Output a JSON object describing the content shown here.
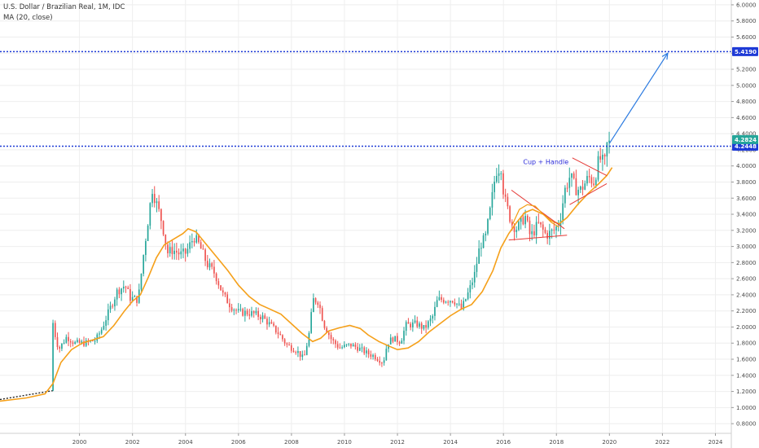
{
  "legend": {
    "title": "U.S. Dollar / Brazilian Real, 1M, IDC",
    "indicator": "MA (20, close)"
  },
  "chart_data": {
    "type": "candlestick",
    "title": "U.S. Dollar / Brazilian Real, 1M, IDC",
    "xlim": [
      1997.0,
      2024.6
    ],
    "ylim": [
      0.68,
      6.06
    ],
    "y_ticks": [
      0.8,
      1.0,
      1.2,
      1.4,
      1.6,
      1.8,
      2.0,
      2.2,
      2.4,
      2.6,
      2.8,
      3.0,
      3.2,
      3.4,
      3.6,
      3.8,
      4.0,
      4.2,
      4.4,
      4.6,
      4.8,
      5.0,
      5.2,
      5.4,
      5.6,
      5.8,
      6.0
    ],
    "y_tick_labels": [
      "0.8000",
      "1.0000",
      "1.2000",
      "1.4000",
      "1.6000",
      "1.8000",
      "2.0000",
      "2.2000",
      "2.4000",
      "2.6000",
      "2.8000",
      "3.0000",
      "3.2000",
      "3.4000",
      "3.6000",
      "3.8000",
      "4.0000",
      "4.2000",
      "4.4000",
      "4.6000",
      "4.8000",
      "5.0000",
      "5.2000",
      "5.4000",
      "5.6000",
      "5.8000",
      "6.0000"
    ],
    "x_ticks": [
      2000,
      2002,
      2004,
      2006,
      2008,
      2010,
      2012,
      2014,
      2016,
      2018,
      2020,
      2022,
      2024
    ],
    "x_tick_labels": [
      "2000",
      "2002",
      "2004",
      "2006",
      "2008",
      "2010",
      "2012",
      "2014",
      "2016",
      "2018",
      "2020",
      "2022",
      "2024"
    ],
    "grid": true,
    "close_path": [
      [
        1999.0,
        1.21
      ],
      [
        1999.05,
        2.05
      ],
      [
        1999.3,
        1.72
      ],
      [
        1999.6,
        1.88
      ],
      [
        1999.9,
        1.8
      ],
      [
        2000.3,
        1.8
      ],
      [
        2000.7,
        1.84
      ],
      [
        2000.9,
        1.96
      ],
      [
        2001.2,
        2.2
      ],
      [
        2001.5,
        2.44
      ],
      [
        2001.8,
        2.52
      ],
      [
        2002.0,
        2.36
      ],
      [
        2002.3,
        2.34
      ],
      [
        2002.5,
        2.9
      ],
      [
        2002.7,
        3.4
      ],
      [
        2002.83,
        3.72
      ],
      [
        2003.0,
        3.52
      ],
      [
        2003.2,
        3.3
      ],
      [
        2003.4,
        2.92
      ],
      [
        2003.6,
        2.96
      ],
      [
        2003.9,
        2.9
      ],
      [
        2004.1,
        2.92
      ],
      [
        2004.4,
        3.12
      ],
      [
        2004.6,
        3.02
      ],
      [
        2004.9,
        2.78
      ],
      [
        2005.2,
        2.66
      ],
      [
        2005.5,
        2.4
      ],
      [
        2005.8,
        2.26
      ],
      [
        2006.1,
        2.18
      ],
      [
        2006.4,
        2.18
      ],
      [
        2006.7,
        2.16
      ],
      [
        2007.0,
        2.12
      ],
      [
        2007.3,
        2.02
      ],
      [
        2007.6,
        1.92
      ],
      [
        2007.9,
        1.78
      ],
      [
        2008.3,
        1.7
      ],
      [
        2008.55,
        1.6
      ],
      [
        2008.75,
        1.92
      ],
      [
        2008.9,
        2.34
      ],
      [
        2009.1,
        2.32
      ],
      [
        2009.3,
        2.04
      ],
      [
        2009.6,
        1.84
      ],
      [
        2009.9,
        1.74
      ],
      [
        2010.3,
        1.78
      ],
      [
        2010.6,
        1.74
      ],
      [
        2010.9,
        1.68
      ],
      [
        2011.2,
        1.64
      ],
      [
        2011.55,
        1.56
      ],
      [
        2011.7,
        1.8
      ],
      [
        2011.9,
        1.86
      ],
      [
        2012.2,
        1.82
      ],
      [
        2012.4,
        2.02
      ],
      [
        2012.8,
        2.04
      ],
      [
        2013.1,
        1.98
      ],
      [
        2013.4,
        2.12
      ],
      [
        2013.6,
        2.34
      ],
      [
        2013.9,
        2.34
      ],
      [
        2014.2,
        2.34
      ],
      [
        2014.5,
        2.22
      ],
      [
        2014.8,
        2.46
      ],
      [
        2015.0,
        2.66
      ],
      [
        2015.2,
        3.02
      ],
      [
        2015.4,
        3.1
      ],
      [
        2015.6,
        3.48
      ],
      [
        2015.8,
        3.94
      ],
      [
        2016.0,
        4.0
      ],
      [
        2016.1,
        3.62
      ],
      [
        2016.4,
        3.28
      ],
      [
        2016.6,
        3.22
      ],
      [
        2016.9,
        3.38
      ],
      [
        2017.1,
        3.12
      ],
      [
        2017.4,
        3.28
      ],
      [
        2017.7,
        3.14
      ],
      [
        2018.0,
        3.2
      ],
      [
        2018.2,
        3.3
      ],
      [
        2018.4,
        3.7
      ],
      [
        2018.6,
        3.88
      ],
      [
        2018.8,
        3.72
      ],
      [
        2019.0,
        3.7
      ],
      [
        2019.3,
        3.86
      ],
      [
        2019.5,
        3.8
      ],
      [
        2019.7,
        4.1
      ],
      [
        2019.9,
        4.02
      ],
      [
        2020.0,
        4.28
      ]
    ],
    "candles": {
      "start": 1999.0,
      "step": 0.0833,
      "count": 253,
      "note_source": "monthly bars; close follows close_path"
    },
    "ma_path": [
      [
        1997.0,
        1.08
      ],
      [
        1998.0,
        1.12
      ],
      [
        1998.7,
        1.17
      ],
      [
        1999.0,
        1.3
      ],
      [
        1999.3,
        1.56
      ],
      [
        1999.7,
        1.72
      ],
      [
        2000.1,
        1.8
      ],
      [
        2000.5,
        1.84
      ],
      [
        2000.9,
        1.88
      ],
      [
        2001.3,
        2.02
      ],
      [
        2001.7,
        2.2
      ],
      [
        2002.0,
        2.32
      ],
      [
        2002.3,
        2.4
      ],
      [
        2002.6,
        2.62
      ],
      [
        2002.9,
        2.86
      ],
      [
        2003.2,
        3.02
      ],
      [
        2003.6,
        3.1
      ],
      [
        2003.9,
        3.16
      ],
      [
        2004.1,
        3.22
      ],
      [
        2004.4,
        3.18
      ],
      [
        2004.8,
        3.02
      ],
      [
        2005.2,
        2.86
      ],
      [
        2005.6,
        2.7
      ],
      [
        2006.0,
        2.52
      ],
      [
        2006.4,
        2.38
      ],
      [
        2006.8,
        2.28
      ],
      [
        2007.2,
        2.22
      ],
      [
        2007.6,
        2.16
      ],
      [
        2008.0,
        2.04
      ],
      [
        2008.4,
        1.92
      ],
      [
        2008.8,
        1.82
      ],
      [
        2009.1,
        1.86
      ],
      [
        2009.4,
        1.95
      ],
      [
        2009.8,
        1.99
      ],
      [
        2010.2,
        2.02
      ],
      [
        2010.6,
        1.98
      ],
      [
        2010.9,
        1.9
      ],
      [
        2011.3,
        1.82
      ],
      [
        2011.7,
        1.76
      ],
      [
        2012.0,
        1.72
      ],
      [
        2012.4,
        1.74
      ],
      [
        2012.8,
        1.82
      ],
      [
        2013.2,
        1.94
      ],
      [
        2013.6,
        2.04
      ],
      [
        2014.0,
        2.14
      ],
      [
        2014.4,
        2.22
      ],
      [
        2014.8,
        2.28
      ],
      [
        2015.2,
        2.44
      ],
      [
        2015.6,
        2.7
      ],
      [
        2015.9,
        2.98
      ],
      [
        2016.2,
        3.16
      ],
      [
        2016.5,
        3.3
      ],
      [
        2016.8,
        3.42
      ],
      [
        2017.1,
        3.46
      ],
      [
        2017.5,
        3.4
      ],
      [
        2017.8,
        3.32
      ],
      [
        2018.1,
        3.28
      ],
      [
        2018.4,
        3.36
      ],
      [
        2018.8,
        3.52
      ],
      [
        2019.2,
        3.66
      ],
      [
        2019.6,
        3.78
      ],
      [
        2019.9,
        3.88
      ],
      [
        2020.1,
        3.98
      ]
    ],
    "horizontal_lines": [
      {
        "value": 5.419,
        "label": "5.4190",
        "color": "#1e3ad6"
      },
      {
        "value": 4.2448,
        "label": "4.2448",
        "color": "#1e3ad6"
      }
    ],
    "current_price": {
      "value": 4.2824,
      "label": "4.2824",
      "color": "#26a69a"
    },
    "projection_arrow": {
      "from": [
        2020.0,
        4.28
      ],
      "to": [
        2022.2,
        5.4
      ],
      "color": "#2b7ae0"
    },
    "trendlines": [
      {
        "from": [
          2016.3,
          3.7
        ],
        "to": [
          2018.3,
          3.22
        ],
        "color": "#e53935"
      },
      {
        "from": [
          2016.2,
          3.08
        ],
        "to": [
          2018.4,
          3.14
        ],
        "color": "#e53935"
      },
      {
        "from": [
          2018.6,
          4.1
        ],
        "to": [
          2019.9,
          3.88
        ],
        "color": "#e53935"
      },
      {
        "from": [
          2018.5,
          3.52
        ],
        "to": [
          2019.9,
          3.78
        ],
        "color": "#e53935"
      }
    ],
    "cup_arc": {
      "points": [
        [
          2016.35,
          3.28
        ],
        [
          2016.6,
          3.46
        ],
        [
          2016.9,
          3.52
        ],
        [
          2017.2,
          3.5
        ],
        [
          2017.5,
          3.4
        ],
        [
          2017.8,
          3.3
        ],
        [
          2018.1,
          3.24
        ]
      ],
      "color": "#f39c12"
    },
    "annotations": [
      {
        "text": "Cup + Handle",
        "x": 2017.6,
        "y": 4.02,
        "color": "#2a2ad8"
      }
    ],
    "colors": {
      "up": "#26a69a",
      "down": "#ef5350",
      "ma": "#f5a01a",
      "grid": "#eeeeee",
      "pre_line": "#222222"
    }
  }
}
